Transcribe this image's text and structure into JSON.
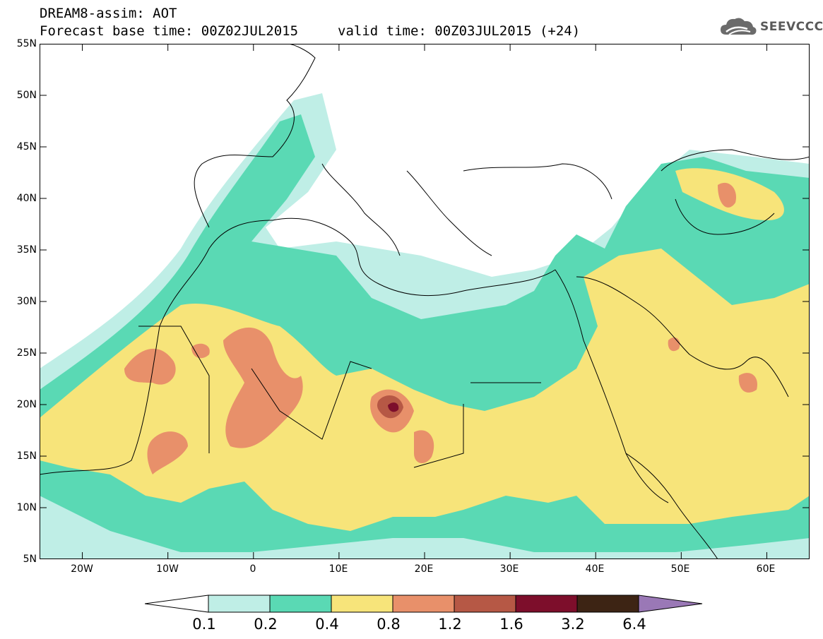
{
  "header": {
    "title": "DREAM8-assim: AOT",
    "base_time": "Forecast base time: 00Z02JUL2015",
    "valid_time": "valid time: 00Z03JUL2015 (+24)"
  },
  "logo": {
    "text": "SEEVCCC",
    "icon": "cloud-icon"
  },
  "map": {
    "lon_range": [
      -25,
      65
    ],
    "lat_range": [
      5,
      55
    ],
    "lat_ticks": [
      "55N",
      "50N",
      "45N",
      "40N",
      "35N",
      "30N",
      "25N",
      "20N",
      "15N",
      "10N",
      "5N"
    ],
    "lon_ticks": [
      "20W",
      "10W",
      "0",
      "10E",
      "20E",
      "30E",
      "40E",
      "50E",
      "60E"
    ]
  },
  "legend": {
    "labels": [
      "0.1",
      "0.2",
      "0.4",
      "0.8",
      "1.2",
      "1.6",
      "3.2",
      "6.4"
    ],
    "colors": [
      "#ffffff",
      "#bfeee6",
      "#5ad9b4",
      "#f7e47a",
      "#e8906a",
      "#b65845",
      "#7d0e2b",
      "#3d2414",
      "#9a78b6"
    ]
  }
}
